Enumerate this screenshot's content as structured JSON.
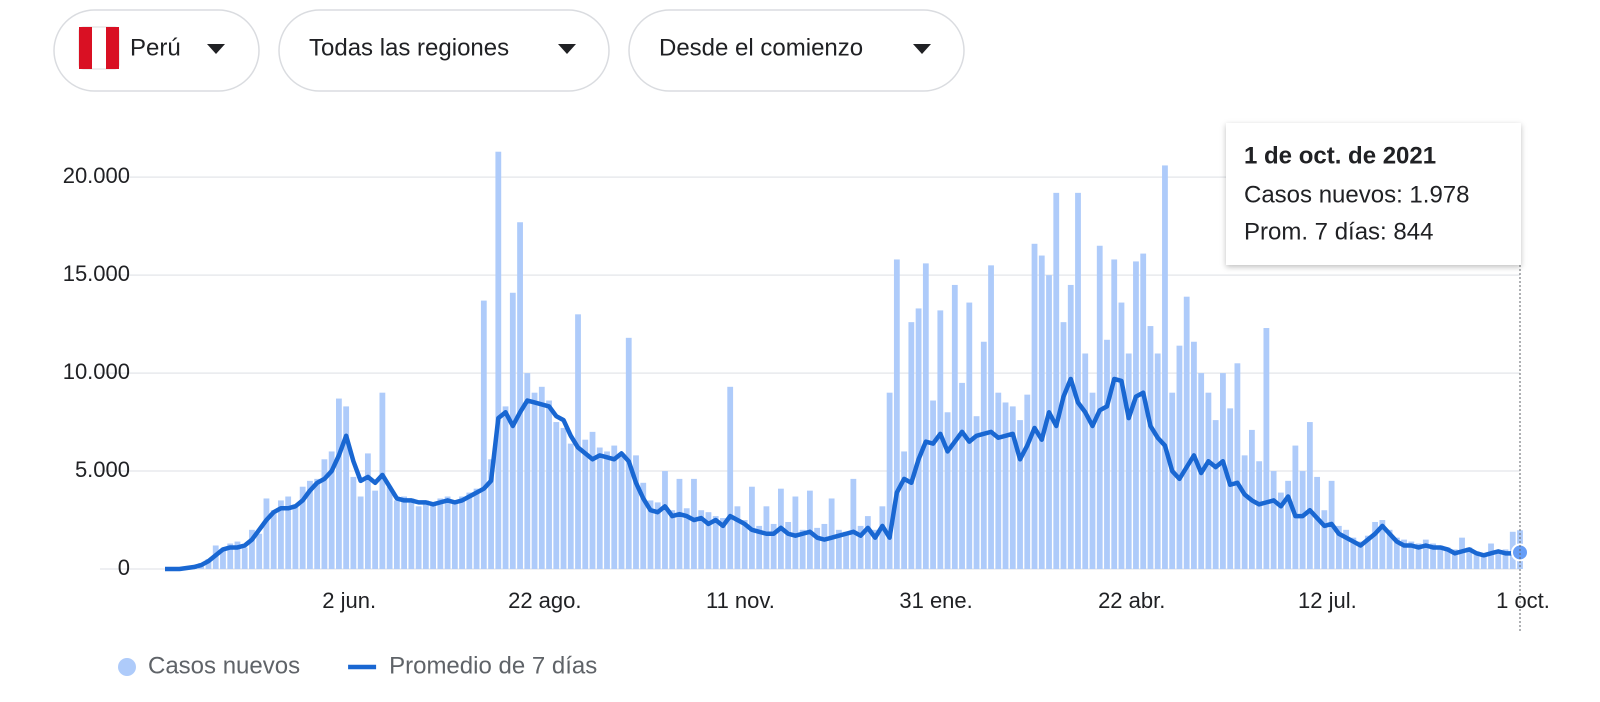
{
  "controls": [
    "Perú",
    "Todas las regiones",
    "Desde el comienzo"
  ],
  "chart_data": {
    "type": "bar",
    "legend": "bottom-left",
    "grid": true,
    "ylim": [
      0,
      22000
    ],
    "yticks": [
      0,
      {
        "value": 5000,
        "label": "5.000"
      },
      {
        "value": 10000,
        "label": "10.000"
      },
      {
        "value": 15000,
        "label": "15.000"
      },
      {
        "value": 20000,
        "label": "20.000"
      }
    ],
    "categories": [
      null,
      null,
      null,
      null,
      null,
      null,
      null,
      null,
      null,
      null,
      null,
      null,
      null,
      null,
      null,
      null,
      null,
      null,
      null,
      null,
      null,
      null,
      null,
      null,
      null,
      "2 jun.",
      null,
      null,
      null,
      null,
      null,
      null,
      null,
      null,
      null,
      null,
      null,
      null,
      null,
      null,
      null,
      null,
      null,
      null,
      null,
      null,
      null,
      null,
      null,
      null,
      null,
      null,
      "22 ago.",
      null,
      null,
      null,
      null,
      null,
      null,
      null,
      null,
      null,
      null,
      null,
      null,
      null,
      null,
      null,
      null,
      null,
      null,
      null,
      null,
      null,
      null,
      null,
      null,
      null,
      null,
      "11 nov.",
      null,
      null,
      null,
      null,
      null,
      null,
      null,
      null,
      null,
      null,
      null,
      null,
      null,
      null,
      null,
      null,
      null,
      null,
      null,
      null,
      null,
      null,
      null,
      null,
      null,
      null,
      "31 ene.",
      null,
      null,
      null,
      null,
      null,
      null,
      null,
      null,
      null,
      null,
      null,
      null,
      null,
      null,
      null,
      null,
      null,
      null,
      null,
      null,
      null,
      null,
      null,
      null,
      null,
      null,
      "22 abr.",
      null,
      null,
      null,
      null,
      null,
      null,
      null,
      null,
      null,
      null,
      null,
      null,
      null,
      null,
      null,
      null,
      null,
      null,
      null,
      null,
      null,
      null,
      null,
      null,
      null,
      null,
      "12 jul.",
      null,
      null,
      null,
      null,
      null,
      null,
      null,
      null,
      null,
      null,
      null,
      null,
      null,
      null,
      null,
      null,
      null,
      null,
      null,
      null,
      null,
      null,
      null,
      null,
      null,
      null,
      "1 oct."
    ],
    "series": [
      {
        "name": "Casos nuevos",
        "type": "bar",
        "color": "#aecbfa",
        "values": [
          0,
          0,
          0,
          100,
          150,
          300,
          500,
          1200,
          1000,
          1300,
          1400,
          1100,
          2000,
          1800,
          3600,
          3000,
          3500,
          3700,
          3300,
          4200,
          4500,
          4600,
          5600,
          6000,
          8700,
          8300,
          4700,
          3700,
          5900,
          4000,
          9000,
          4200,
          3500,
          3700,
          3600,
          3200,
          3500,
          3300,
          3600,
          3700,
          3500,
          3700,
          3900,
          4100,
          13700,
          5600,
          21300,
          8300,
          14100,
          17700,
          10000,
          9000,
          9300,
          8600,
          7500,
          7200,
          6400,
          13000,
          6600,
          7000,
          6200,
          6000,
          6300,
          5800,
          11800,
          5800,
          4400,
          3500,
          3400,
          5000,
          3000,
          4600,
          3100,
          4600,
          3000,
          2900,
          2700,
          2600,
          9300,
          3200,
          2500,
          4200,
          2200,
          3200,
          2300,
          4100,
          2400,
          3700,
          2000,
          4000,
          2100,
          2300,
          3600,
          2000,
          1900,
          4600,
          2200,
          2700,
          2000,
          3200,
          9000,
          15800,
          6000,
          12600,
          13300,
          15600,
          8600,
          13200,
          8000,
          14500,
          9500,
          13600,
          7800,
          11600,
          15500,
          9000,
          8500,
          8300,
          7600,
          8900,
          16600,
          16000,
          15000,
          19200,
          12600,
          14500,
          19200,
          11000,
          9000,
          16500,
          11700,
          15800,
          13600,
          11000,
          15700,
          16100,
          12400,
          11000,
          20600,
          9000,
          11400,
          13900,
          11600,
          10000,
          9000,
          7600,
          10000,
          8200,
          10500,
          5800,
          7100,
          5500,
          12300,
          5000,
          3900,
          4500,
          6300,
          5000,
          7500,
          4700,
          3000,
          4500,
          2200,
          2000,
          1600,
          1400,
          1700,
          2400,
          2500,
          2000,
          1600,
          1500,
          1400,
          1300,
          1500,
          1300,
          1200,
          1100,
          1000,
          1600,
          1100,
          900,
          800,
          1300,
          900,
          1000,
          1900,
          1978
        ]
      },
      {
        "name": "Promedio de 7 días",
        "type": "line",
        "color": "#1967d2",
        "values": [
          0,
          0,
          0,
          50,
          100,
          200,
          400,
          700,
          1000,
          1100,
          1100,
          1200,
          1500,
          2000,
          2500,
          2900,
          3100,
          3100,
          3200,
          3500,
          4000,
          4400,
          4600,
          5000,
          5800,
          6800,
          5500,
          4500,
          4700,
          4400,
          4800,
          4200,
          3600,
          3500,
          3500,
          3400,
          3400,
          3300,
          3400,
          3500,
          3400,
          3500,
          3700,
          3900,
          4100,
          4500,
          7700,
          8000,
          7300,
          8000,
          8600,
          8500,
          8400,
          8300,
          7800,
          7600,
          6800,
          6200,
          5900,
          5600,
          5800,
          5700,
          5600,
          5900,
          5500,
          4400,
          3600,
          3000,
          2900,
          3200,
          2700,
          2800,
          2700,
          2500,
          2600,
          2300,
          2500,
          2200,
          2700,
          2500,
          2300,
          2000,
          1900,
          1800,
          1800,
          2100,
          1800,
          1700,
          1800,
          1900,
          1600,
          1500,
          1600,
          1700,
          1800,
          1900,
          1700,
          2100,
          1600,
          2200,
          1600,
          3900,
          4600,
          4400,
          5600,
          6500,
          6400,
          6900,
          6000,
          6500,
          7000,
          6500,
          6800,
          6900,
          7000,
          6700,
          6800,
          6900,
          5600,
          6300,
          7200,
          6600,
          8000,
          7300,
          8800,
          9700,
          8500,
          8000,
          7300,
          8100,
          8300,
          9700,
          9600,
          7700,
          8800,
          9000,
          7300,
          6700,
          6300,
          5000,
          4600,
          5200,
          5800,
          4900,
          5500,
          5200,
          5500,
          4300,
          4400,
          3800,
          3500,
          3300,
          3400,
          3500,
          3200,
          3700,
          2700,
          2700,
          3000,
          2600,
          2200,
          2300,
          1800,
          1600,
          1400,
          1200,
          1500,
          1800,
          2200,
          1800,
          1400,
          1200,
          1200,
          1100,
          1200,
          1100,
          1100,
          1000,
          800,
          900,
          1000,
          800,
          700,
          800,
          900,
          800,
          800,
          844
        ]
      }
    ],
    "tooltip": {
      "title": "1 de oct. de 2021",
      "lines": [
        "Casos nuevos: 1.978",
        "Prom. 7 días: 844"
      ]
    }
  }
}
